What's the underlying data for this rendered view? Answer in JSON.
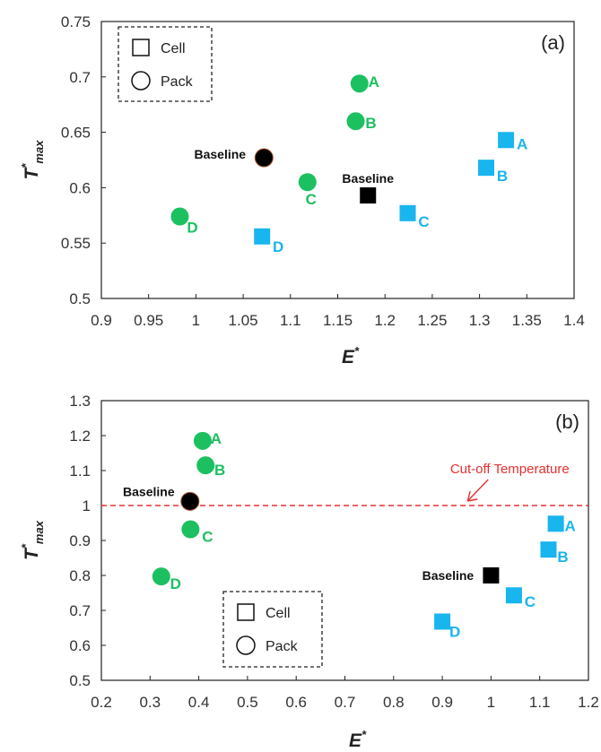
{
  "chart_data": [
    {
      "type": "scatter",
      "panel_label": "(a)",
      "xlabel": "E*",
      "ylabel": "T*max",
      "xlim": [
        0.9,
        1.4
      ],
      "ylim": [
        0.5,
        0.75
      ],
      "x_ticks": [
        0.9,
        0.95,
        1,
        1.05,
        1.1,
        1.15,
        1.2,
        1.25,
        1.3,
        1.35,
        1.4
      ],
      "x_tick_labels": [
        "0.9",
        "0.95",
        "1",
        "1.05",
        "1.1",
        "1.15",
        "1.2",
        "1.25",
        "1.3",
        "1.35",
        "1.4"
      ],
      "y_ticks": [
        0.5,
        0.55,
        0.6,
        0.65,
        0.7,
        0.75
      ],
      "y_tick_labels": [
        "0.5",
        "0.55",
        "0.6",
        "0.65",
        "0.7",
        "0.75"
      ],
      "grid": false,
      "legend": {
        "position": "top-left",
        "entries": [
          {
            "marker": "square",
            "label": "Cell"
          },
          {
            "marker": "circle",
            "label": "Pack"
          }
        ]
      },
      "colors": {
        "cell": "#19b5ee",
        "pack": "#1cc061",
        "baseline": "#000000"
      },
      "series": [
        {
          "name": "Cell",
          "marker": "square",
          "points": [
            {
              "label": "A",
              "x": 1.328,
              "y": 0.643
            },
            {
              "label": "B",
              "x": 1.307,
              "y": 0.618
            },
            {
              "label": "C",
              "x": 1.224,
              "y": 0.577
            },
            {
              "label": "D",
              "x": 1.07,
              "y": 0.556
            },
            {
              "label": "Baseline",
              "x": 1.182,
              "y": 0.593,
              "baseline": true
            }
          ]
        },
        {
          "name": "Pack",
          "marker": "circle",
          "points": [
            {
              "label": "A",
              "x": 1.173,
              "y": 0.694
            },
            {
              "label": "B",
              "x": 1.169,
              "y": 0.66
            },
            {
              "label": "C",
              "x": 1.118,
              "y": 0.605
            },
            {
              "label": "D",
              "x": 0.983,
              "y": 0.574
            },
            {
              "label": "Baseline",
              "x": 1.072,
              "y": 0.627,
              "baseline": true
            }
          ]
        }
      ]
    },
    {
      "type": "scatter",
      "panel_label": "(b)",
      "xlabel": "E*",
      "ylabel": "T*max",
      "xlim": [
        0.2,
        1.2
      ],
      "ylim": [
        0.5,
        1.3
      ],
      "x_ticks": [
        0.2,
        0.3,
        0.4,
        0.5,
        0.6,
        0.7,
        0.8,
        0.9,
        1,
        1.1,
        1.2
      ],
      "x_tick_labels": [
        "0.2",
        "0.3",
        "0.4",
        "0.5",
        "0.6",
        "0.7",
        "0.8",
        "0.9",
        "1",
        "1.1",
        "1.2"
      ],
      "y_ticks": [
        0.5,
        0.6,
        0.7,
        0.8,
        0.9,
        1,
        1.1,
        1.2,
        1.3
      ],
      "y_tick_labels": [
        "0.5",
        "0.6",
        "0.7",
        "0.8",
        "0.9",
        "1",
        "1.1",
        "1.2",
        "1.3"
      ],
      "grid": false,
      "legend": {
        "position": "bottom-center",
        "entries": [
          {
            "marker": "square",
            "label": "Cell"
          },
          {
            "marker": "circle",
            "label": "Pack"
          }
        ]
      },
      "colors": {
        "cell": "#19b5ee",
        "pack": "#1cc061",
        "baseline": "#000000",
        "cutoff": "#e53030"
      },
      "reference_line": {
        "y": 1,
        "label": "Cut-off Temperature",
        "style": "dashed",
        "arrow_to_x": 0.95
      },
      "series": [
        {
          "name": "Cell",
          "marker": "square",
          "points": [
            {
              "label": "A",
              "x": 1.133,
              "y": 0.948
            },
            {
              "label": "B",
              "x": 1.118,
              "y": 0.874
            },
            {
              "label": "C",
              "x": 1.047,
              "y": 0.743
            },
            {
              "label": "D",
              "x": 0.9,
              "y": 0.668
            },
            {
              "label": "Baseline",
              "x": 1.0,
              "y": 0.8,
              "baseline": true
            }
          ]
        },
        {
          "name": "Pack",
          "marker": "circle",
          "points": [
            {
              "label": "A",
              "x": 0.408,
              "y": 1.185
            },
            {
              "label": "B",
              "x": 0.414,
              "y": 1.115
            },
            {
              "label": "C",
              "x": 0.383,
              "y": 0.932
            },
            {
              "label": "D",
              "x": 0.323,
              "y": 0.797
            },
            {
              "label": "Baseline",
              "x": 0.382,
              "y": 1.012,
              "baseline": true
            }
          ]
        }
      ]
    }
  ]
}
